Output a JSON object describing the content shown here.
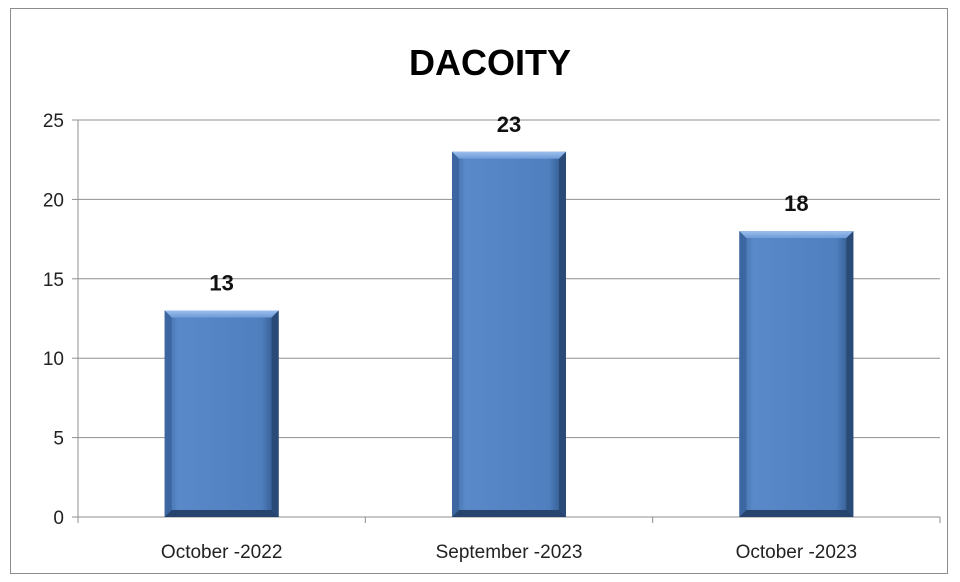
{
  "chart_data": {
    "type": "bar",
    "title": "DACOITY",
    "categories": [
      "October -2022",
      "September -2023",
      "October -2023"
    ],
    "values": [
      13,
      23,
      18
    ],
    "data_labels": [
      "13",
      "23",
      "18"
    ],
    "xlabel": "",
    "ylabel": "",
    "ylim": [
      0,
      25
    ],
    "yticks": [
      "0",
      "5",
      "10",
      "15",
      "20",
      "25"
    ],
    "grid": true,
    "legend": "none",
    "bar_color": "#4f81bd"
  }
}
